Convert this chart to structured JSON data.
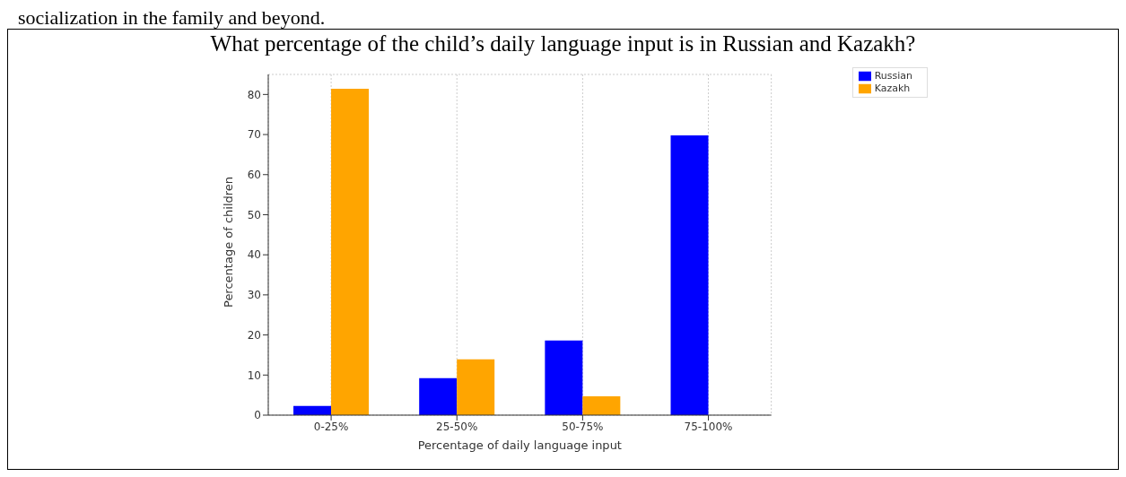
{
  "chart_data": {
    "type": "bar",
    "title": "What percentage of the child’s daily language input is in Russian and Kazakh?",
    "annotations": [
      "socialization in the family and beyond."
    ],
    "xlabel": "Percentage of daily language input",
    "ylabel": "Percentage of children",
    "categories": [
      "0-25%",
      "25-50%",
      "50-75%",
      "75-100%"
    ],
    "series": [
      {
        "name": "Russian",
        "color": "#0000ff",
        "values": [
          2.3,
          9.2,
          18.6,
          69.8
        ]
      },
      {
        "name": "Kazakh",
        "color": "#ffa500",
        "values": [
          81.4,
          13.9,
          4.7,
          0
        ]
      }
    ],
    "ylim": [
      0,
      85
    ],
    "yticks": [
      0,
      10,
      20,
      30,
      40,
      50,
      60,
      70,
      80
    ],
    "grid": true,
    "legend": "top right"
  }
}
